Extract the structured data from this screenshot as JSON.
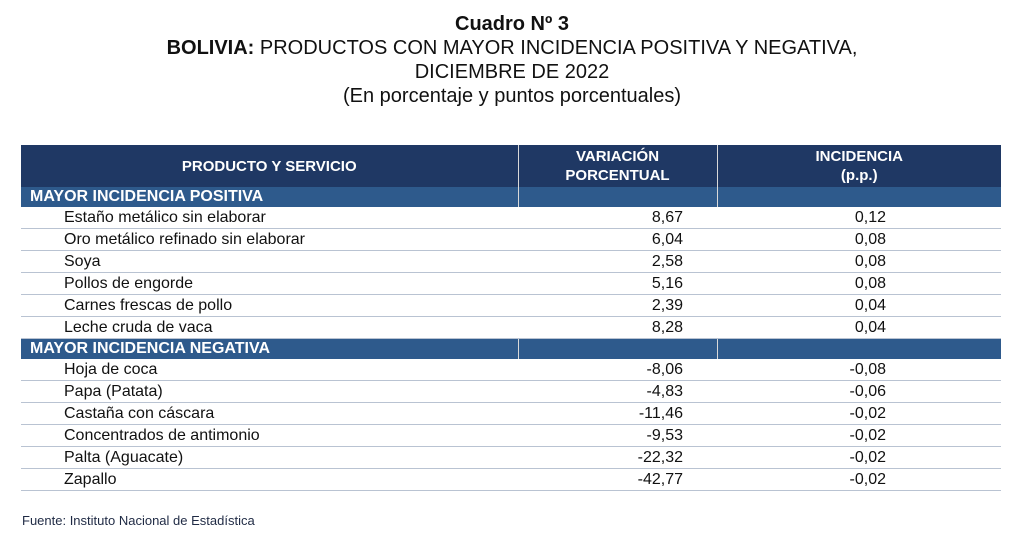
{
  "title": {
    "line1": "Cuadro Nº 3",
    "line2_bold": "BOLIVIA:",
    "line2_rest": " PRODUCTOS CON MAYOR INCIDENCIA POSITIVA Y NEGATIVA,",
    "line3": "DICIEMBRE DE 2022",
    "line4": "(En porcentaje y puntos porcentuales)"
  },
  "headers": {
    "col1": "PRODUCTO Y SERVICIO",
    "col2_a": "VARIACIÓN",
    "col2_b": "PORCENTUAL",
    "col3_a": "INCIDENCIA",
    "col3_b": "(p.p.)"
  },
  "sections": [
    {
      "label": "MAYOR INCIDENCIA POSITIVA",
      "rows": [
        {
          "product": "Estaño metálico sin elaborar",
          "variation": "8,67",
          "incidence": "0,12"
        },
        {
          "product": "Oro metálico refinado sin elaborar",
          "variation": "6,04",
          "incidence": "0,08"
        },
        {
          "product": "Soya",
          "variation": "2,58",
          "incidence": "0,08"
        },
        {
          "product": "Pollos de engorde",
          "variation": "5,16",
          "incidence": "0,08"
        },
        {
          "product": "Carnes frescas de pollo",
          "variation": "2,39",
          "incidence": "0,04"
        },
        {
          "product": "Leche cruda de vaca",
          "variation": "8,28",
          "incidence": "0,04"
        }
      ]
    },
    {
      "label": "MAYOR INCIDENCIA NEGATIVA",
      "rows": [
        {
          "product": "Hoja de coca",
          "variation": "-8,06",
          "incidence": "-0,08"
        },
        {
          "product": "Papa (Patata)",
          "variation": "-4,83",
          "incidence": "-0,06"
        },
        {
          "product": "Castaña con cáscara",
          "variation": "-11,46",
          "incidence": "-0,02"
        },
        {
          "product": "Concentrados de antimonio",
          "variation": "-9,53",
          "incidence": "-0,02"
        },
        {
          "product": "Palta (Aguacate)",
          "variation": "-22,32",
          "incidence": "-0,02"
        },
        {
          "product": "Zapallo",
          "variation": "-42,77",
          "incidence": "-0,02"
        }
      ]
    }
  ],
  "source": "Fuente: Instituto Nacional de Estadística"
}
